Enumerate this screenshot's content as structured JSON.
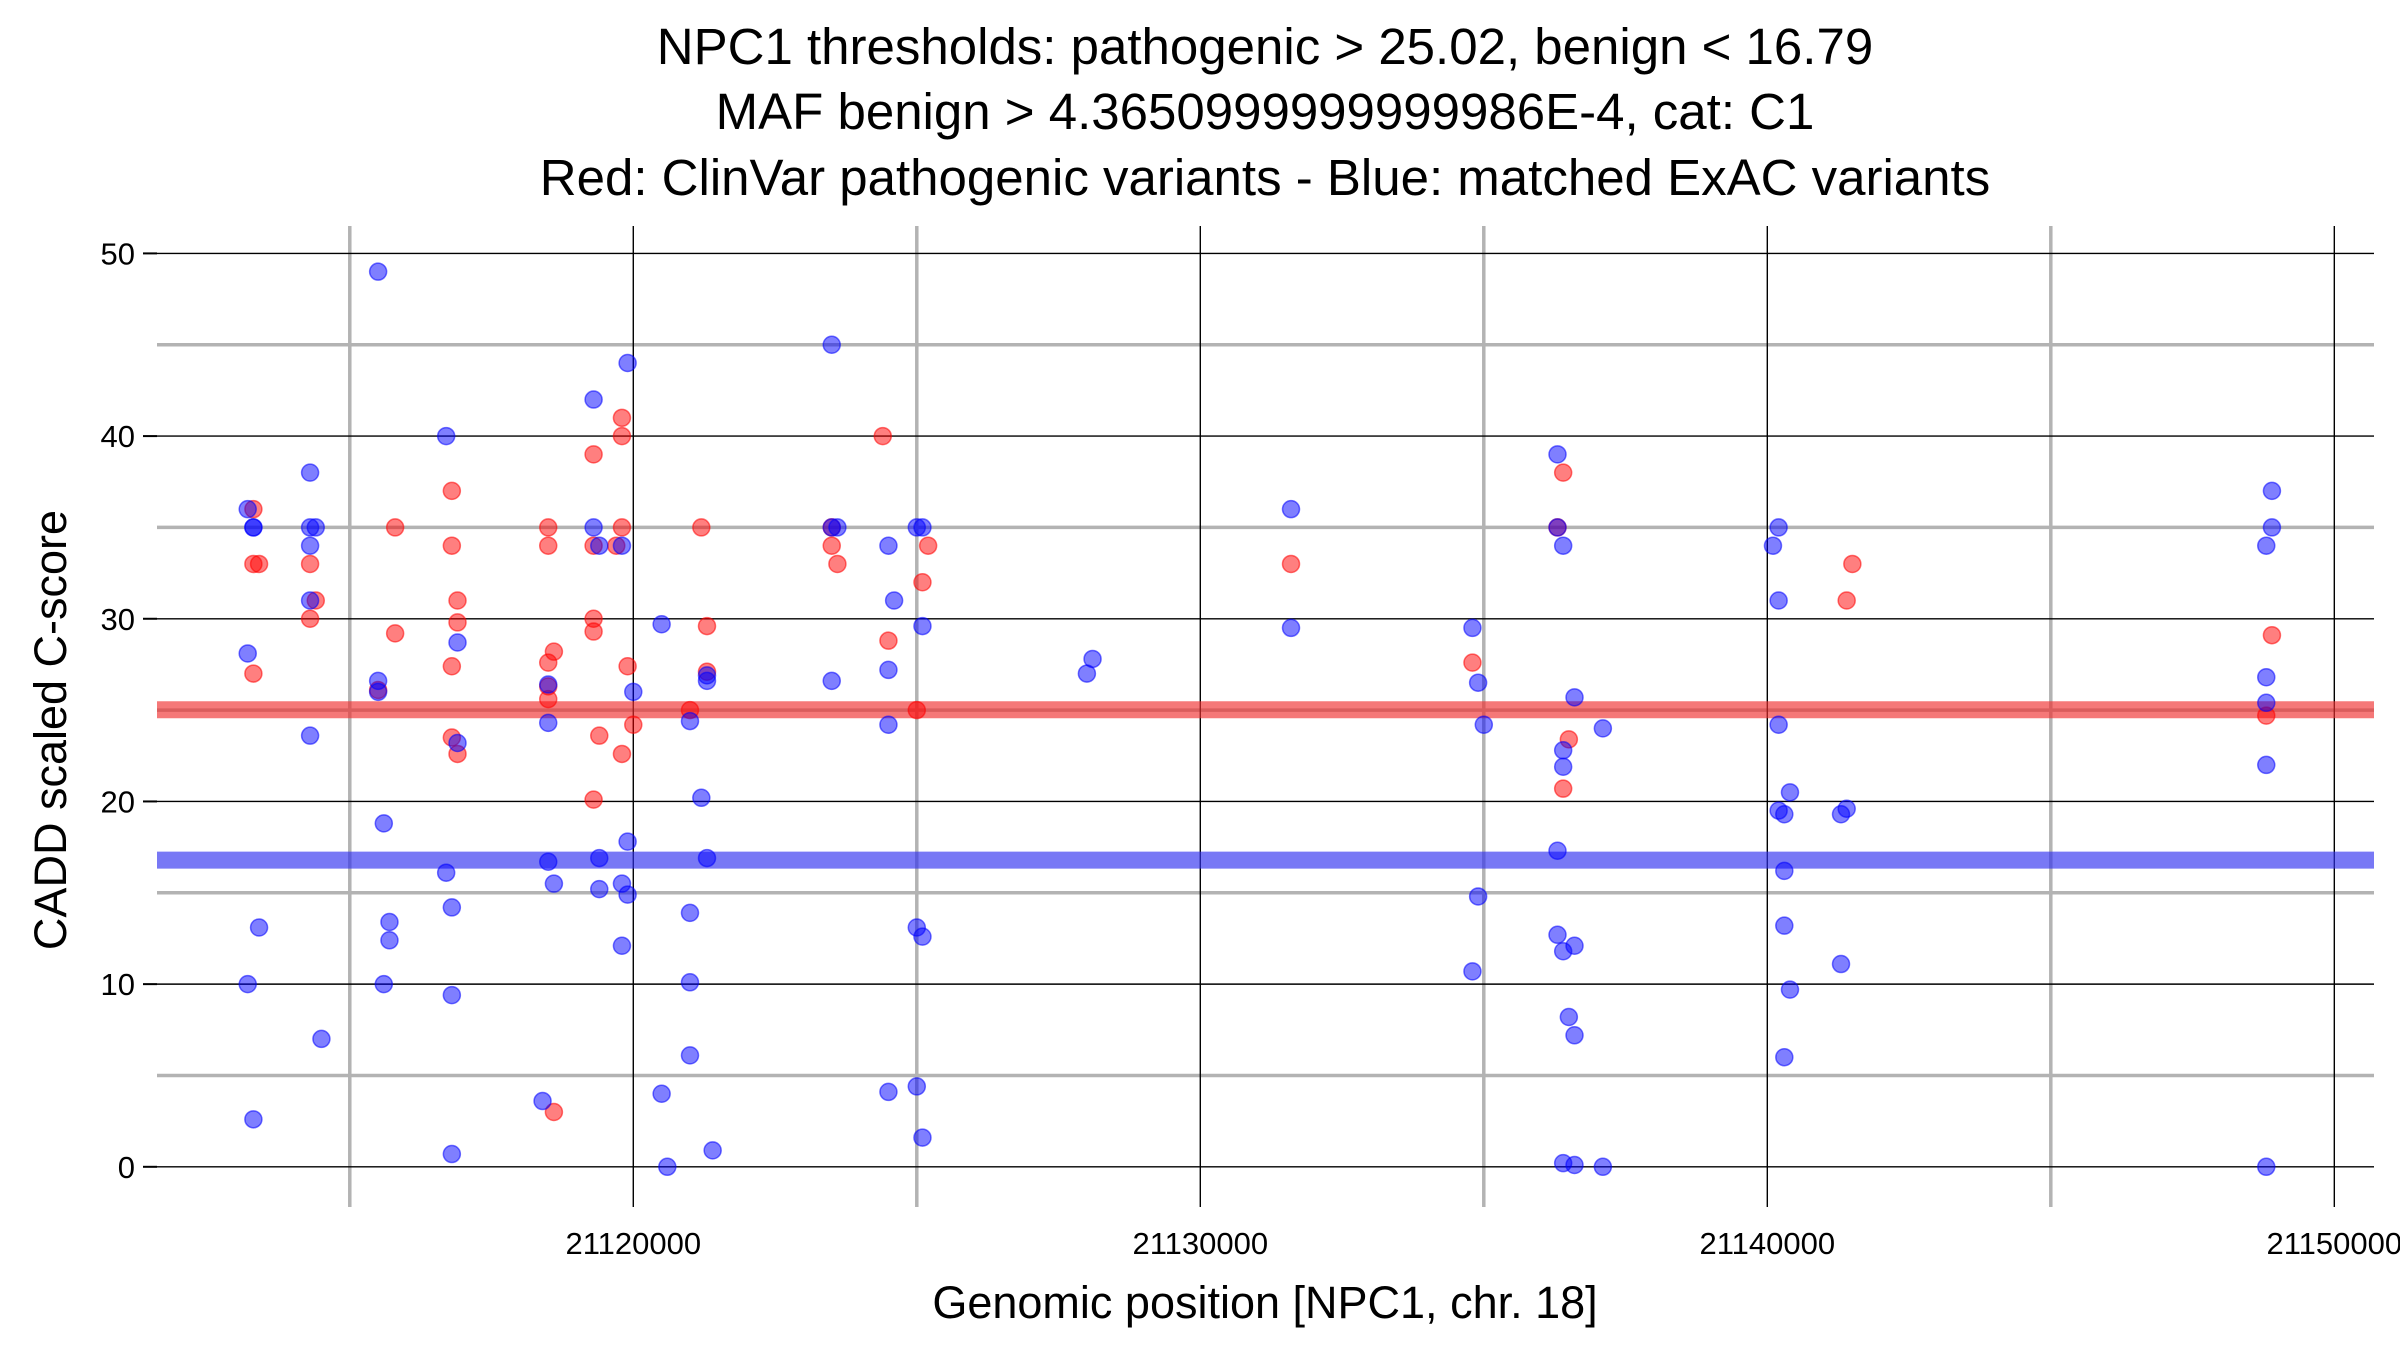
{
  "chart_data": {
    "type": "scatter",
    "title_lines": [
      "NPC1 thresholds: pathogenic > 25.02, benign < 16.79",
      "MAF benign > 4.3650999999999986E-4, cat: C1",
      "Red: ClinVar pathogenic variants - Blue: matched ExAC variants"
    ],
    "xlabel": "Genomic position [NPC1, chr. 18]",
    "ylabel": "CADD scaled C-score",
    "xlim": [
      21111600,
      21150700
    ],
    "ylim": [
      -2.2,
      51.5
    ],
    "x_ticks": [
      21120000,
      21130000,
      21140000,
      21150000
    ],
    "x_tick_labels": [
      "21120000",
      "21130000",
      "21140000",
      "21150000"
    ],
    "x_minor_ticks": [
      21115000,
      21125000,
      21135000,
      21145000
    ],
    "y_ticks": [
      0,
      10,
      20,
      30,
      40,
      50
    ],
    "y_tick_labels": [
      "0",
      "10",
      "20",
      "30",
      "40",
      "50"
    ],
    "y_minor_ticks": [
      5,
      15,
      25,
      35,
      45
    ],
    "thresholds": [
      {
        "name": "pathogenic",
        "value": 25.02,
        "color": "#f03030"
      },
      {
        "name": "benign",
        "value": 16.79,
        "color": "#3030f0"
      }
    ],
    "series": [
      {
        "name": "ClinVar pathogenic variants",
        "color": "#ff0000",
        "points": [
          [
            21113300,
            36
          ],
          [
            21113300,
            33
          ],
          [
            21113400,
            33
          ],
          [
            21113300,
            27
          ],
          [
            21114300,
            33
          ],
          [
            21114300,
            30
          ],
          [
            21114400,
            31
          ],
          [
            21115800,
            35
          ],
          [
            21115800,
            29.2
          ],
          [
            21115500,
            26.1
          ],
          [
            21116800,
            37
          ],
          [
            21116800,
            34
          ],
          [
            21116900,
            31
          ],
          [
            21116900,
            29.8
          ],
          [
            21116800,
            27.4
          ],
          [
            21116800,
            23.5
          ],
          [
            21116900,
            22.6
          ],
          [
            21118500,
            35
          ],
          [
            21118500,
            34
          ],
          [
            21118500,
            27.6
          ],
          [
            21118600,
            28.2
          ],
          [
            21118500,
            26.3
          ],
          [
            21118500,
            25.6
          ],
          [
            21118600,
            3
          ],
          [
            21119300,
            39
          ],
          [
            21119300,
            34
          ],
          [
            21119300,
            30
          ],
          [
            21119300,
            29.3
          ],
          [
            21119400,
            23.6
          ],
          [
            21119300,
            20.1
          ],
          [
            21119800,
            41
          ],
          [
            21119800,
            40
          ],
          [
            21119800,
            35
          ],
          [
            21119700,
            34
          ],
          [
            21119900,
            27.4
          ],
          [
            21119800,
            22.6
          ],
          [
            21120000,
            24.2
          ],
          [
            21121000,
            25
          ],
          [
            21121200,
            35
          ],
          [
            21121300,
            29.6
          ],
          [
            21121300,
            27.1
          ],
          [
            21123500,
            35
          ],
          [
            21123500,
            34
          ],
          [
            21123600,
            33
          ],
          [
            21124400,
            40
          ],
          [
            21124500,
            28.8
          ],
          [
            21125000,
            25
          ],
          [
            21125100,
            32
          ],
          [
            21125200,
            34
          ],
          [
            21131600,
            33
          ],
          [
            21134800,
            27.6
          ],
          [
            21136300,
            35
          ],
          [
            21136400,
            38
          ],
          [
            21136500,
            23.4
          ],
          [
            21136400,
            20.7
          ],
          [
            21141500,
            33
          ],
          [
            21141400,
            31
          ],
          [
            21148900,
            29.1
          ],
          [
            21148800,
            24.7
          ]
        ]
      },
      {
        "name": "matched ExAC variants",
        "color": "#0000ff",
        "points": [
          [
            21113300,
            35
          ],
          [
            21113300,
            35
          ],
          [
            21113200,
            36
          ],
          [
            21113200,
            28.1
          ],
          [
            21113200,
            10
          ],
          [
            21113400,
            13.1
          ],
          [
            21113300,
            2.6
          ],
          [
            21114300,
            38
          ],
          [
            21114300,
            35
          ],
          [
            21114400,
            35
          ],
          [
            21114300,
            34
          ],
          [
            21114300,
            31
          ],
          [
            21114300,
            23.6
          ],
          [
            21114500,
            7
          ],
          [
            21115500,
            49
          ],
          [
            21115500,
            26.6
          ],
          [
            21115500,
            26
          ],
          [
            21115600,
            18.8
          ],
          [
            21115700,
            13.4
          ],
          [
            21115700,
            12.4
          ],
          [
            21115600,
            10
          ],
          [
            21116700,
            40
          ],
          [
            21116900,
            28.7
          ],
          [
            21116900,
            23.2
          ],
          [
            21116700,
            16.1
          ],
          [
            21116800,
            14.2
          ],
          [
            21116800,
            9.4
          ],
          [
            21116800,
            0.7
          ],
          [
            21118500,
            26.4
          ],
          [
            21118500,
            24.3
          ],
          [
            21118500,
            16.7
          ],
          [
            21118600,
            15.5
          ],
          [
            21118400,
            3.6
          ],
          [
            21119300,
            42
          ],
          [
            21119300,
            35
          ],
          [
            21119400,
            34
          ],
          [
            21119400,
            16.9
          ],
          [
            21119400,
            15.2
          ],
          [
            21119900,
            44
          ],
          [
            21119800,
            34
          ],
          [
            21120000,
            26
          ],
          [
            21119900,
            17.8
          ],
          [
            21119800,
            15.5
          ],
          [
            21119900,
            14.9
          ],
          [
            21119800,
            12.1
          ],
          [
            21120500,
            29.7
          ],
          [
            21120500,
            4
          ],
          [
            21120600,
            0
          ],
          [
            21121000,
            24.4
          ],
          [
            21121000,
            13.9
          ],
          [
            21121000,
            10.1
          ],
          [
            21121000,
            6.1
          ],
          [
            21121300,
            26.9
          ],
          [
            21121300,
            26.6
          ],
          [
            21121200,
            20.2
          ],
          [
            21121300,
            16.9
          ],
          [
            21121400,
            0.9
          ],
          [
            21123500,
            45
          ],
          [
            21123500,
            35
          ],
          [
            21123600,
            35
          ],
          [
            21123500,
            26.6
          ],
          [
            21124500,
            34
          ],
          [
            21124600,
            31
          ],
          [
            21124500,
            27.2
          ],
          [
            21124500,
            24.2
          ],
          [
            21124500,
            4.1
          ],
          [
            21125000,
            35
          ],
          [
            21125100,
            35
          ],
          [
            21125100,
            29.6
          ],
          [
            21125000,
            13.1
          ],
          [
            21125100,
            12.6
          ],
          [
            21125000,
            4.4
          ],
          [
            21125100,
            1.6
          ],
          [
            21128100,
            27.8
          ],
          [
            21128000,
            27
          ],
          [
            21131600,
            36
          ],
          [
            21131600,
            29.5
          ],
          [
            21134800,
            29.5
          ],
          [
            21134900,
            26.5
          ],
          [
            21135000,
            24.2
          ],
          [
            21134900,
            14.8
          ],
          [
            21134800,
            10.7
          ],
          [
            21136300,
            39
          ],
          [
            21136300,
            35
          ],
          [
            21136400,
            34
          ],
          [
            21136300,
            17.3
          ],
          [
            21136300,
            12.7
          ],
          [
            21136400,
            11.8
          ],
          [
            21136600,
            12.1
          ],
          [
            21136600,
            25.7
          ],
          [
            21136400,
            22.8
          ],
          [
            21136400,
            21.9
          ],
          [
            21136500,
            8.2
          ],
          [
            21136600,
            7.2
          ],
          [
            21136400,
            0.2
          ],
          [
            21136600,
            0.1
          ],
          [
            21137100,
            24
          ],
          [
            21137100,
            0
          ],
          [
            21140200,
            35
          ],
          [
            21140100,
            34
          ],
          [
            21140200,
            31
          ],
          [
            21140200,
            24.2
          ],
          [
            21140200,
            19.5
          ],
          [
            21140300,
            19.3
          ],
          [
            21140400,
            20.5
          ],
          [
            21140300,
            16.2
          ],
          [
            21140300,
            13.2
          ],
          [
            21140400,
            9.7
          ],
          [
            21140300,
            6
          ],
          [
            21141400,
            19.6
          ],
          [
            21141300,
            19.3
          ],
          [
            21141300,
            11.1
          ],
          [
            21148900,
            37
          ],
          [
            21148900,
            35
          ],
          [
            21148800,
            34
          ],
          [
            21148800,
            26.8
          ],
          [
            21148800,
            25.4
          ],
          [
            21148800,
            22
          ],
          [
            21148800,
            0
          ]
        ]
      }
    ]
  }
}
